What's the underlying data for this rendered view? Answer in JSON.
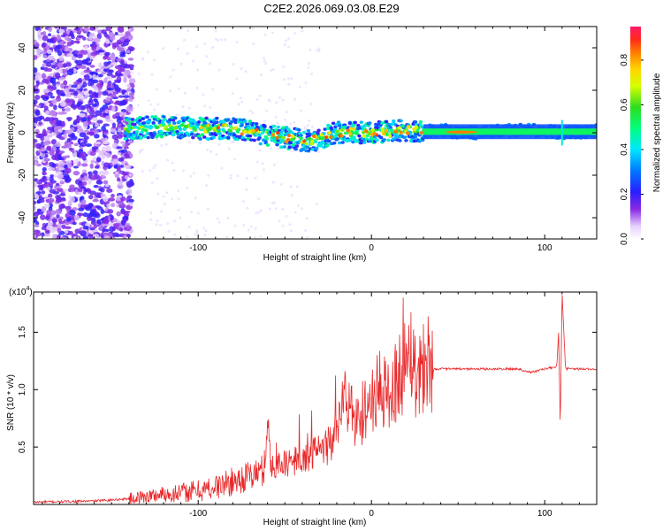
{
  "title": "C2E2.2026.069.03.08.E29",
  "colors": {
    "snr_line": "#e8282a",
    "axis": "#000000",
    "background": "#ffffff"
  },
  "chart_data": [
    {
      "type": "heatmap",
      "name": "spectrogram",
      "xlabel": "Height of straight line (km)",
      "ylabel": "Frequency (Hz)",
      "xlim": [
        -195,
        130
      ],
      "ylim": [
        -50,
        50
      ],
      "xticks": [
        -100,
        0,
        100
      ],
      "xtick_labels": [
        "-100",
        "0",
        "100"
      ],
      "yticks": [
        -40,
        -20,
        0,
        20,
        40
      ],
      "ytick_labels": [
        "-40",
        "-20",
        "0",
        "20",
        "40"
      ],
      "colorbar": {
        "label": "Normalized spectral amplitude",
        "range": [
          0,
          0.95
        ],
        "ticks": [
          0.0,
          0.2,
          0.4,
          0.6,
          0.8
        ],
        "tick_labels": [
          "0.0",
          "0.2",
          "0.4",
          "0.6",
          "0.8"
        ]
      },
      "ridge_center_hz": [
        {
          "x": -140,
          "y": 2
        },
        {
          "x": -120,
          "y": 3
        },
        {
          "x": -100,
          "y": 2
        },
        {
          "x": -80,
          "y": 2
        },
        {
          "x": -60,
          "y": -1
        },
        {
          "x": -45,
          "y": -3
        },
        {
          "x": -35,
          "y": -4
        },
        {
          "x": -20,
          "y": 0
        },
        {
          "x": 0,
          "y": 0
        },
        {
          "x": 20,
          "y": 1
        },
        {
          "x": 40,
          "y": 1
        },
        {
          "x": 60,
          "y": 0
        },
        {
          "x": 80,
          "y": 1
        },
        {
          "x": 100,
          "y": 1
        },
        {
          "x": 110,
          "y": 0
        },
        {
          "x": 130,
          "y": 1
        }
      ]
    },
    {
      "type": "line",
      "name": "snr",
      "xlabel": "Height of straight line (km)",
      "ylabel": "SNR (10 * v/v)",
      "y_multiplier": "(x10",
      "y_multiplier_exp": "4",
      "y_multiplier_close": ")",
      "xlim": [
        -195,
        130
      ],
      "ylim": [
        0,
        1.85
      ],
      "xticks": [
        -100,
        0,
        100
      ],
      "xtick_labels": [
        "-100",
        "0",
        "100"
      ],
      "yticks": [
        0.5,
        1.0,
        1.5
      ],
      "ytick_labels": [
        "0.5",
        "1.0",
        "1.5"
      ],
      "series": [
        {
          "name": "SNR",
          "points": [
            {
              "x": -195,
              "y": 0.02
            },
            {
              "x": -160,
              "y": 0.03
            },
            {
              "x": -140,
              "y": 0.05
            },
            {
              "x": -130,
              "y": 0.07
            },
            {
              "x": -120,
              "y": 0.09
            },
            {
              "x": -110,
              "y": 0.1
            },
            {
              "x": -100,
              "y": 0.12
            },
            {
              "x": -90,
              "y": 0.15
            },
            {
              "x": -80,
              "y": 0.2
            },
            {
              "x": -70,
              "y": 0.25
            },
            {
              "x": -62,
              "y": 0.3
            },
            {
              "x": -60,
              "y": 0.7
            },
            {
              "x": -58,
              "y": 0.35
            },
            {
              "x": -50,
              "y": 0.35
            },
            {
              "x": -40,
              "y": 0.4
            },
            {
              "x": -30,
              "y": 0.45
            },
            {
              "x": -20,
              "y": 0.6
            },
            {
              "x": -15,
              "y": 1.0
            },
            {
              "x": -10,
              "y": 0.7
            },
            {
              "x": -5,
              "y": 0.8
            },
            {
              "x": 0,
              "y": 0.9
            },
            {
              "x": 5,
              "y": 1.0
            },
            {
              "x": 10,
              "y": 0.95
            },
            {
              "x": 15,
              "y": 1.1
            },
            {
              "x": 20,
              "y": 1.25
            },
            {
              "x": 22,
              "y": 1.45
            },
            {
              "x": 25,
              "y": 1.15
            },
            {
              "x": 30,
              "y": 1.2
            },
            {
              "x": 33,
              "y": 1.3
            },
            {
              "x": 36,
              "y": 1.18
            },
            {
              "x": 50,
              "y": 1.18
            },
            {
              "x": 70,
              "y": 1.18
            },
            {
              "x": 85,
              "y": 1.18
            },
            {
              "x": 92,
              "y": 1.15
            },
            {
              "x": 100,
              "y": 1.18
            },
            {
              "x": 107,
              "y": 1.2
            },
            {
              "x": 108,
              "y": 1.5
            },
            {
              "x": 109,
              "y": 0.65
            },
            {
              "x": 110,
              "y": 1.85
            },
            {
              "x": 112,
              "y": 1.18
            },
            {
              "x": 120,
              "y": 1.18
            },
            {
              "x": 130,
              "y": 1.18
            }
          ]
        }
      ]
    }
  ]
}
